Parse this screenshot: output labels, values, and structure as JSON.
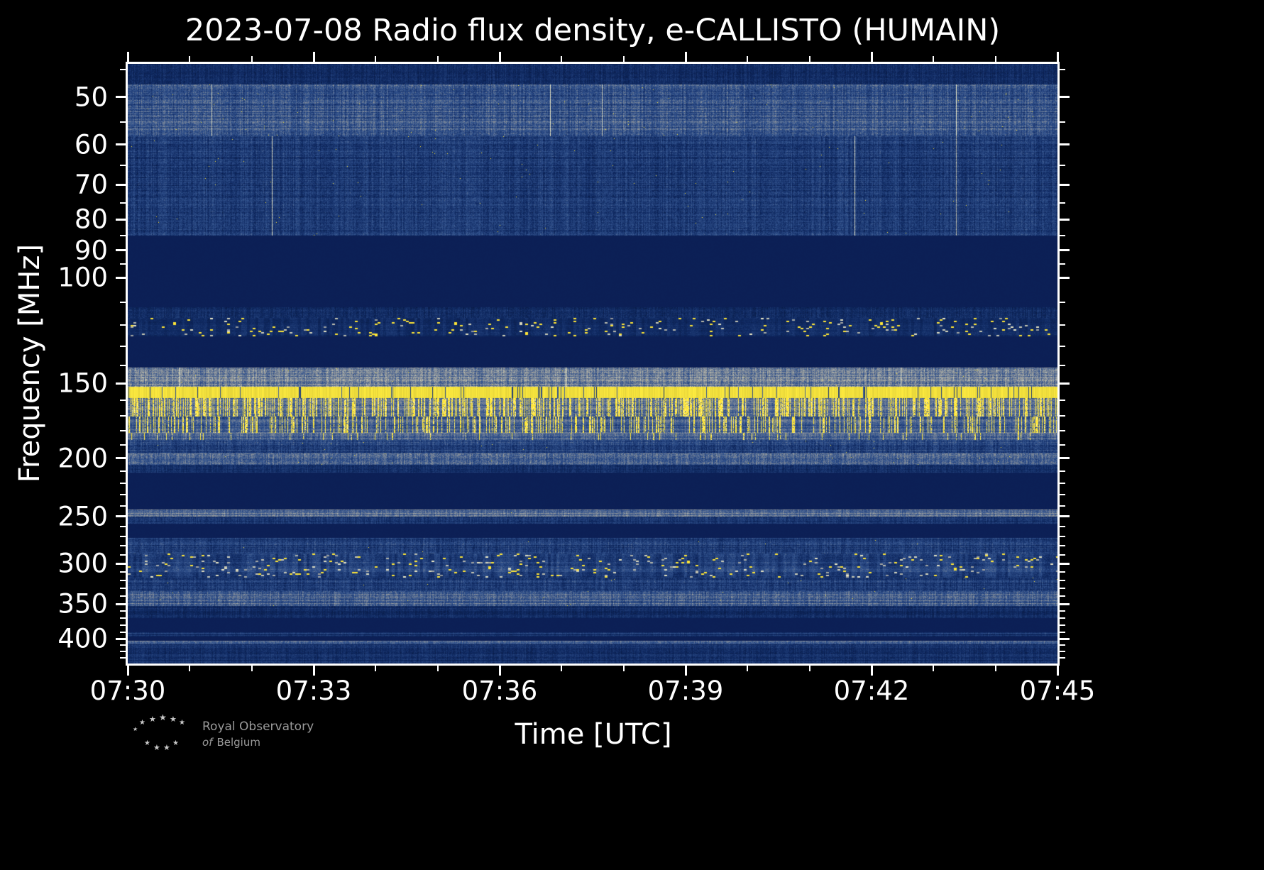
{
  "page": {
    "background": "#000000"
  },
  "branding": {
    "line1": "Royal Observatory",
    "line2_of": "of",
    "line2_rest": "Belgium"
  },
  "chart_data": {
    "type": "heatmap",
    "title": "2023-07-08 Radio flux density, e-CALLISTO (HUMAIN)",
    "date": "2023-07-08",
    "instrument": "e-CALLISTO",
    "station": "HUMAIN",
    "xlabel": "Time [UTC]",
    "ylabel": "Frequency [MHz]",
    "x_total_min": 15,
    "x_major_ticks": [
      {
        "label": "07:30",
        "min": 0
      },
      {
        "label": "07:33",
        "min": 3
      },
      {
        "label": "07:36",
        "min": 6
      },
      {
        "label": "07:39",
        "min": 9
      },
      {
        "label": "07:42",
        "min": 12
      },
      {
        "label": "07:45",
        "min": 15
      }
    ],
    "x_minor_step_min": 1,
    "y_scale": "log",
    "y_min_mhz": 44,
    "y_max_mhz": 440,
    "y_major_ticks": [
      50,
      60,
      70,
      80,
      90,
      100,
      150,
      200,
      250,
      300,
      350,
      400
    ],
    "y_minor_ticks": [
      45,
      55,
      65,
      75,
      85,
      95,
      110,
      120,
      130,
      140,
      160,
      170,
      180,
      190,
      210,
      220,
      230,
      240,
      260,
      270,
      280,
      290,
      310,
      320,
      330,
      340,
      360,
      370,
      380,
      390,
      410,
      420,
      430
    ],
    "colormap": {
      "blank": "#0c1f55",
      "palette_blue": [
        "#061539",
        "#102a63",
        "#33548f",
        "#95999b",
        "#efecc8"
      ],
      "yellow": "#ffe636",
      "yellow_solid": "#ffec40"
    },
    "bands": [
      {
        "f1": 44,
        "f2": 47.5,
        "style": "noise",
        "base": 0.05,
        "range": 0.3,
        "rowAmp": 0.1,
        "vline": 0.001
      },
      {
        "f1": 47.5,
        "f2": 58,
        "style": "noise",
        "base": 0.16,
        "range": 0.42,
        "rowAmp": 0.22,
        "vline": 0.002,
        "yellow": 0.0006
      },
      {
        "f1": 58,
        "f2": 85,
        "style": "noise",
        "base": 0.08,
        "range": 0.38,
        "rowAmp": 0.15,
        "vline": 0.002,
        "yellow": 0.0004
      },
      {
        "f1": 85,
        "f2": 112,
        "style": "blank"
      },
      {
        "f1": 112,
        "f2": 116.5,
        "style": "noise",
        "base": 0.06,
        "range": 0.3,
        "rowAmp": 0.1
      },
      {
        "f1": 116.5,
        "f2": 125,
        "style": "speckle",
        "base": 0.1,
        "range": 0.22,
        "rowAmp": 0.08,
        "density": 0.055,
        "yellowShare": 0.55,
        "blob": 4
      },
      {
        "f1": 125,
        "f2": 141,
        "style": "blank"
      },
      {
        "f1": 141,
        "f2": 152,
        "style": "noise",
        "base": 0.3,
        "range": 0.45,
        "rowAmp": 0.25,
        "vline": 0.004,
        "yellow": 0.001
      },
      {
        "f1": 152,
        "f2": 158.5,
        "style": "solid",
        "gap": 0.05
      },
      {
        "f1": 158.5,
        "f2": 170,
        "style": "stripes",
        "base": 0.34,
        "range": 0.4,
        "rowAmp": 0.2,
        "density": 0.42
      },
      {
        "f1": 170,
        "f2": 181,
        "style": "stripes",
        "base": 0.26,
        "range": 0.38,
        "rowAmp": 0.2,
        "density": 0.25
      },
      {
        "f1": 181,
        "f2": 186,
        "style": "stripes",
        "base": 0.3,
        "range": 0.36,
        "rowAmp": 0.2,
        "density": 0.05
      },
      {
        "f1": 186,
        "f2": 196,
        "style": "noise",
        "base": 0.12,
        "range": 0.38,
        "rowAmp": 0.18,
        "yellow": 0.0008
      },
      {
        "f1": 196,
        "f2": 205,
        "style": "noise",
        "base": 0.24,
        "range": 0.42,
        "rowAmp": 0.22,
        "yellow": 0.0008
      },
      {
        "f1": 205,
        "f2": 211,
        "style": "noise",
        "base": 0.08,
        "range": 0.28,
        "rowAmp": 0.12
      },
      {
        "f1": 211,
        "f2": 243,
        "style": "blank"
      },
      {
        "f1": 243,
        "f2": 250,
        "style": "noise",
        "base": 0.3,
        "range": 0.35,
        "rowAmp": 0.25,
        "yellow": 0.0005
      },
      {
        "f1": 250,
        "f2": 257,
        "style": "noise",
        "base": 0.1,
        "range": 0.3,
        "rowAmp": 0.15
      },
      {
        "f1": 257,
        "f2": 271,
        "style": "blank"
      },
      {
        "f1": 271,
        "f2": 288,
        "style": "noise",
        "base": 0.1,
        "range": 0.36,
        "rowAmp": 0.18,
        "yellow": 0.0004
      },
      {
        "f1": 288,
        "f2": 316,
        "style": "speckle",
        "base": 0.12,
        "range": 0.34,
        "rowAmp": 0.2,
        "density": 0.05,
        "yellowShare": 0.4,
        "blob": 4
      },
      {
        "f1": 316,
        "f2": 333,
        "style": "noise",
        "base": 0.1,
        "range": 0.34,
        "rowAmp": 0.16,
        "yellow": 0.0006
      },
      {
        "f1": 333,
        "f2": 352,
        "style": "noise",
        "base": 0.22,
        "range": 0.4,
        "rowAmp": 0.25,
        "yellow": 0.0005
      },
      {
        "f1": 352,
        "f2": 369,
        "style": "noise",
        "base": 0.06,
        "range": 0.26,
        "rowAmp": 0.12
      },
      {
        "f1": 369,
        "f2": 390,
        "style": "blank"
      },
      {
        "f1": 390,
        "f2": 396,
        "style": "noise",
        "base": 0.05,
        "range": 0.22,
        "rowAmp": 0.3
      },
      {
        "f1": 396,
        "f2": 403,
        "style": "blank"
      },
      {
        "f1": 403,
        "f2": 408,
        "style": "noise",
        "base": 0.22,
        "range": 0.3,
        "rowAmp": 0.3
      },
      {
        "f1": 408,
        "f2": 440,
        "style": "noise",
        "base": 0.06,
        "range": 0.28,
        "rowAmp": 0.14
      }
    ]
  }
}
